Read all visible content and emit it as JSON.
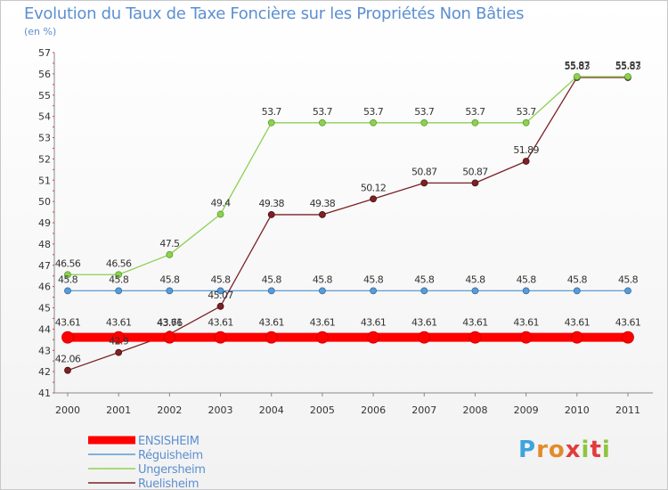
{
  "title": "Evolution du Taux de Taxe Foncière sur les Propriétés Non Bâties",
  "subtitle": "(en %)",
  "logo": "Proxiti",
  "chart_data": {
    "type": "line",
    "x": [
      "2000",
      "2001",
      "2002",
      "2003",
      "2004",
      "2005",
      "2006",
      "2007",
      "2008",
      "2009",
      "2010",
      "2011"
    ],
    "yticks": [
      41,
      42,
      43,
      44,
      45,
      46,
      47,
      48,
      49,
      50,
      51,
      52,
      53,
      54,
      55,
      56,
      57
    ],
    "ylim": [
      41,
      57
    ],
    "grid": false,
    "legend_position": "bottom-left",
    "series": [
      {
        "name": "ENSISHEIM",
        "color": "#ff0000",
        "values": [
          43.61,
          43.61,
          43.61,
          43.61,
          43.61,
          43.61,
          43.61,
          43.61,
          43.61,
          43.61,
          43.61,
          43.61
        ],
        "labels": [
          "43.61",
          "43.61",
          "43.61",
          "43.61",
          "43.61",
          "43.61",
          "43.61",
          "43.61",
          "43.61",
          "43.61",
          "43.61",
          "43.61"
        ]
      },
      {
        "name": "Réguisheim",
        "color": "#5b9bd5",
        "values": [
          45.8,
          45.8,
          45.8,
          45.8,
          45.8,
          45.8,
          45.8,
          45.8,
          45.8,
          45.8,
          45.8,
          45.8
        ],
        "labels": [
          "45.8",
          "45.8",
          "45.8",
          "45.8",
          "45.8",
          "45.8",
          "45.8",
          "45.8",
          "45.8",
          "45.8",
          "45.8",
          "45.8"
        ]
      },
      {
        "name": "Ungersheim",
        "color": "#8dd154",
        "values": [
          46.56,
          46.56,
          47.5,
          49.4,
          53.7,
          53.7,
          53.7,
          53.7,
          53.7,
          53.7,
          55.87,
          55.87
        ],
        "labels": [
          "46.56",
          "46.56",
          "47.5",
          "49.4",
          "53.7",
          "53.7",
          "53.7",
          "53.7",
          "53.7",
          "53.7",
          "55.87",
          "55.87"
        ]
      },
      {
        "name": "Ruelisheim",
        "color": "#7a2226",
        "values": [
          42.06,
          42.9,
          43.76,
          45.07,
          49.38,
          49.38,
          50.12,
          50.87,
          50.87,
          51.89,
          55.83,
          55.83
        ],
        "labels": [
          "42.06",
          "42.9",
          "43.76",
          "45.07",
          "49.38",
          "49.38",
          "50.12",
          "50.87",
          "50.87",
          "51.89",
          "55.83",
          "55.83"
        ]
      }
    ]
  }
}
